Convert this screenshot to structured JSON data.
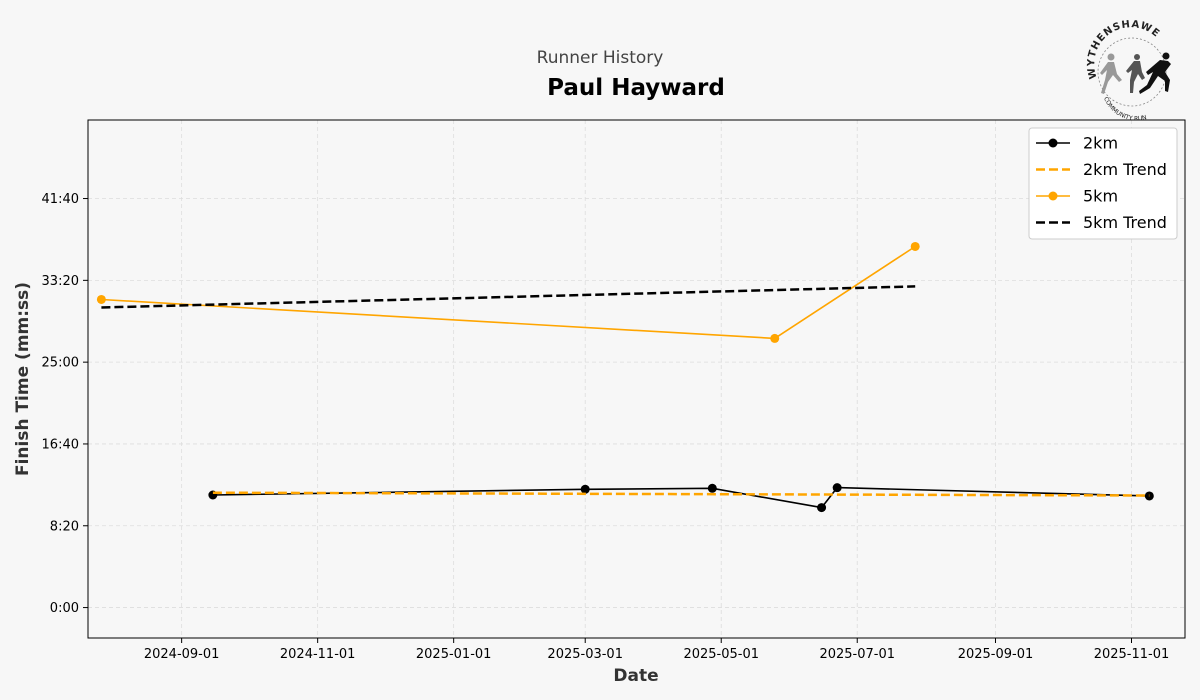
{
  "header": {
    "subtitle": "Runner History",
    "title": "Paul Hayward"
  },
  "logo": {
    "top_text": "WYTHENSHAWE",
    "bottom_text": "COMMUNITY RUN"
  },
  "chart_data": {
    "type": "line",
    "xlabel": "Date",
    "ylabel": "Finish Time (mm:ss)",
    "xlim": [
      "2024-07-21",
      "2025-11-25"
    ],
    "ylim_seconds": [
      -186,
      2980
    ],
    "x_ticks": [
      "2024-09-01",
      "2024-11-01",
      "2025-01-01",
      "2025-03-01",
      "2025-05-01",
      "2025-07-01",
      "2025-09-01",
      "2025-11-01"
    ],
    "y_ticks": [
      {
        "seconds": 0,
        "label": "0:00"
      },
      {
        "seconds": 500,
        "label": "8:20"
      },
      {
        "seconds": 1000,
        "label": "16:40"
      },
      {
        "seconds": 1500,
        "label": "25:00"
      },
      {
        "seconds": 2000,
        "label": "33:20"
      },
      {
        "seconds": 2500,
        "label": "41:40"
      }
    ],
    "grid": true,
    "legend_position": "top-right",
    "series": [
      {
        "name": "2km",
        "color": "#000000",
        "style": "solid",
        "marker": true,
        "points": [
          {
            "date": "2024-09-15",
            "seconds": 688
          },
          {
            "date": "2025-03-01",
            "seconds": 723
          },
          {
            "date": "2025-04-27",
            "seconds": 729
          },
          {
            "date": "2025-06-15",
            "seconds": 611
          },
          {
            "date": "2025-06-22",
            "seconds": 733
          },
          {
            "date": "2025-11-09",
            "seconds": 682
          }
        ]
      },
      {
        "name": "2km Trend",
        "color": "#ffa500",
        "style": "dashed",
        "marker": false,
        "points": [
          {
            "date": "2024-09-15",
            "seconds": 702
          },
          {
            "date": "2025-11-09",
            "seconds": 685
          }
        ]
      },
      {
        "name": "5km",
        "color": "#ffa500",
        "style": "solid",
        "marker": true,
        "points": [
          {
            "date": "2024-07-27",
            "seconds": 1883
          },
          {
            "date": "2025-05-25",
            "seconds": 1645
          },
          {
            "date": "2025-07-27",
            "seconds": 2207
          }
        ]
      },
      {
        "name": "5km Trend",
        "color": "#000000",
        "style": "dashed",
        "marker": false,
        "points": [
          {
            "date": "2024-07-27",
            "seconds": 1834
          },
          {
            "date": "2025-07-27",
            "seconds": 1963
          }
        ]
      }
    ]
  }
}
